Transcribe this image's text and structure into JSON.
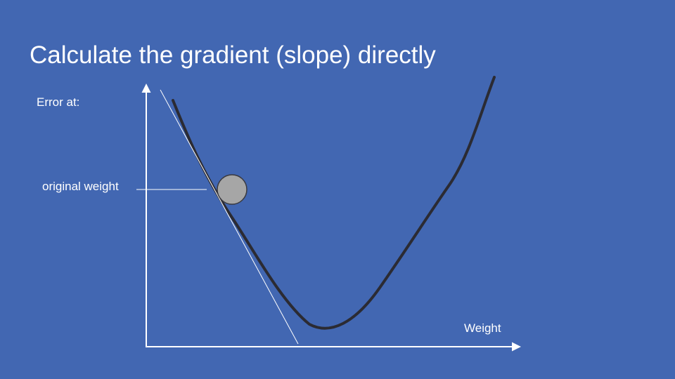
{
  "slide": {
    "title": "Calculate the gradient (slope) directly",
    "background_color": "#4267b2"
  },
  "diagram": {
    "y_axis_label": "Error at:",
    "marker_label": "original weight",
    "x_axis_label": "Weight",
    "curve_color": "#2b2b33",
    "ball_color": "#a6a6a6",
    "line_color": "#ffffff"
  }
}
